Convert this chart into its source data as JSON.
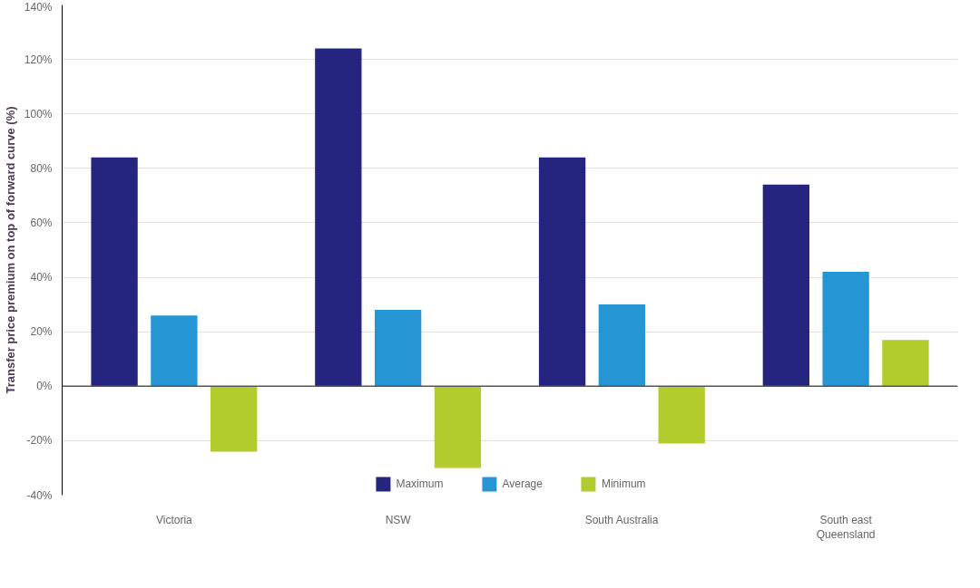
{
  "chart_data": {
    "type": "bar",
    "ylabel": "Transfer price premium on top of forward curve (%)",
    "categories": [
      "Victoria",
      "NSW",
      "South Australia",
      "South east\nQueensland"
    ],
    "series": [
      {
        "name": "Maximum",
        "color": "#25247e",
        "values": [
          84,
          124,
          84,
          74
        ]
      },
      {
        "name": "Average",
        "color": "#2596d3",
        "values": [
          26,
          28,
          30,
          42
        ]
      },
      {
        "name": "Minimum",
        "color": "#b2cc2e",
        "values": [
          -24,
          -30,
          -21,
          17
        ]
      }
    ],
    "ylim": [
      -40,
      140
    ],
    "yticks": [
      {
        "value": -40,
        "label": "-40%"
      },
      {
        "value": -20,
        "label": "-20%"
      },
      {
        "value": 0,
        "label": "0%"
      },
      {
        "value": 20,
        "label": "20%"
      },
      {
        "value": 40,
        "label": "40%"
      },
      {
        "value": 60,
        "label": "60%"
      },
      {
        "value": 80,
        "label": "80%"
      },
      {
        "value": 100,
        "label": "100%"
      },
      {
        "value": 120,
        "label": "120%"
      },
      {
        "value": 140,
        "label": "140%"
      }
    ],
    "grid": "y",
    "legend": "bottom"
  }
}
